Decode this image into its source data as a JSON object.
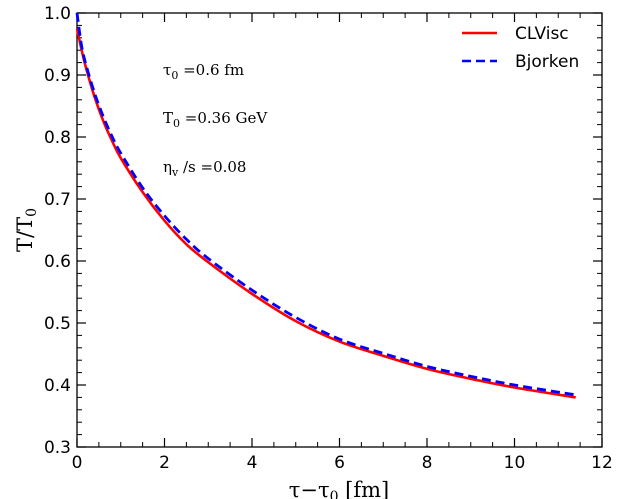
{
  "chart_data": {
    "type": "line",
    "xlabel": "τ−τ",
    "xlabel_sub": "0",
    "xlabel_unit": " [fm]",
    "ylabel": "T/T",
    "ylabel_sub": "0",
    "xlim": [
      0,
      12
    ],
    "ylim": [
      0.3,
      1.0
    ],
    "xticks": [
      0,
      2,
      4,
      6,
      8,
      10,
      12
    ],
    "xtick_labels": [
      "0",
      "2",
      "4",
      "6",
      "8",
      "10",
      "12"
    ],
    "yticks": [
      0.3,
      0.4,
      0.5,
      0.6,
      0.7,
      0.8,
      0.9,
      1.0
    ],
    "ytick_labels": [
      "0.3",
      "0.4",
      "0.5",
      "0.6",
      "0.7",
      "0.8",
      "0.9",
      "1.0"
    ],
    "legend_position": "top-right",
    "annotations": [
      {
        "main": "τ",
        "sub": "0",
        "rest": " =0.6 fm"
      },
      {
        "main": "T",
        "sub": "0",
        "rest": " =0.36 GeV"
      },
      {
        "main": "η",
        "sub": "v",
        "rest": " /s =0.08"
      }
    ],
    "series": [
      {
        "name": "CLVisc",
        "color": "#ff0000",
        "style": "solid",
        "x": [
          0,
          0.1,
          0.2,
          0.4,
          0.6,
          0.8,
          1.0,
          1.5,
          2.0,
          2.5,
          3.0,
          4.0,
          5.0,
          6.0,
          7.0,
          8.0,
          9.0,
          10.0,
          11.4
        ],
        "y": [
          0.975,
          0.942,
          0.913,
          0.865,
          0.826,
          0.794,
          0.766,
          0.711,
          0.665,
          0.627,
          0.598,
          0.547,
          0.503,
          0.47,
          0.447,
          0.426,
          0.41,
          0.396,
          0.38
        ]
      },
      {
        "name": "Bjorken",
        "color": "#0000ff",
        "style": "dashed",
        "x": [
          0,
          0.1,
          0.2,
          0.4,
          0.6,
          0.8,
          1.0,
          1.5,
          2.0,
          2.5,
          3.0,
          4.0,
          5.0,
          6.0,
          7.0,
          8.0,
          9.0,
          10.0,
          11.4
        ],
        "y": [
          1.0,
          0.949,
          0.918,
          0.871,
          0.833,
          0.801,
          0.774,
          0.718,
          0.673,
          0.635,
          0.604,
          0.553,
          0.509,
          0.474,
          0.451,
          0.43,
          0.414,
          0.4,
          0.384
        ]
      }
    ]
  }
}
